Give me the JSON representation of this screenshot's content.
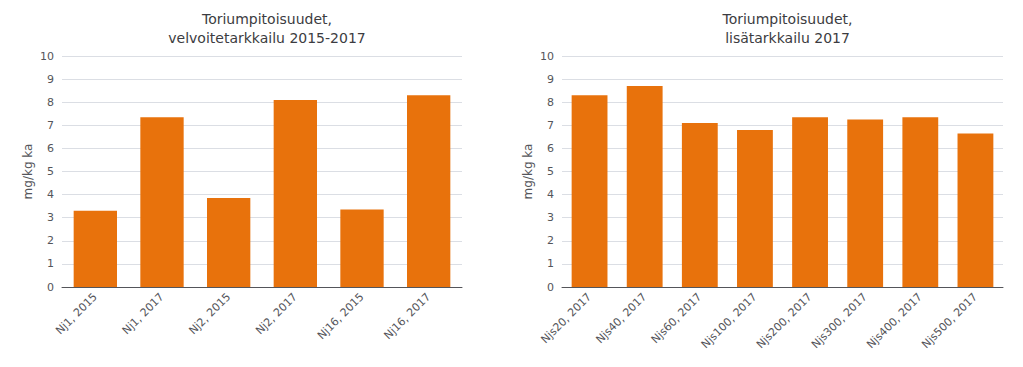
{
  "chart_data": [
    {
      "type": "bar",
      "title": "Toriumpitoisuudet,\nvelvoitetarkkailu 2015-2017",
      "ylabel": "mg/kg ka",
      "categories": [
        "Nj1, 2015",
        "Nj1, 2017",
        "Nj2, 2015",
        "Nj2, 2017",
        "Nj16, 2015",
        "Nj16, 2017"
      ],
      "values": [
        3.3,
        7.35,
        3.85,
        8.1,
        3.35,
        8.3
      ],
      "color": "#E8720C",
      "ylim": [
        0,
        10
      ],
      "yticks": [
        0,
        1,
        2,
        3,
        4,
        5,
        6,
        7,
        8,
        9,
        10
      ],
      "grid": true
    },
    {
      "type": "bar",
      "title": "Toriumpitoisuudet,\nlisätarkkailu 2017",
      "ylabel": "mg/kg ka",
      "categories": [
        "Njs20, 2017",
        "Njs40, 2017",
        "Njs60, 2017",
        "Njs100, 2017",
        "Njs200, 2017",
        "Njs300, 2017",
        "Njs400, 2017",
        "Njs500, 2017"
      ],
      "values": [
        8.3,
        8.7,
        7.1,
        6.8,
        7.35,
        7.25,
        7.35,
        6.65
      ],
      "color": "#E8720C",
      "ylim": [
        0,
        10
      ],
      "yticks": [
        0,
        1,
        2,
        3,
        4,
        5,
        6,
        7,
        8,
        9,
        10
      ],
      "grid": true
    }
  ]
}
